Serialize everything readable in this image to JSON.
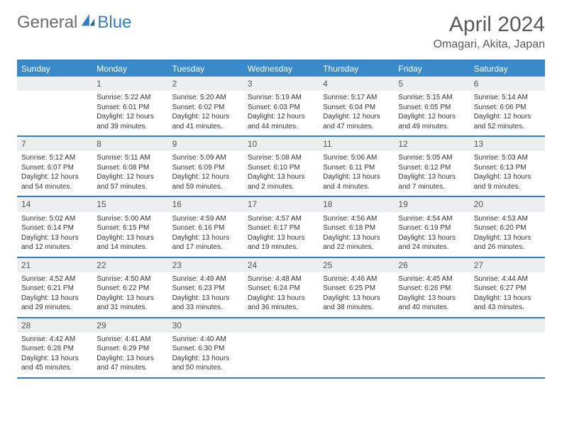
{
  "logo": {
    "text1": "General",
    "text2": "Blue"
  },
  "title": "April 2024",
  "location": "Omagari, Akita, Japan",
  "colors": {
    "header_bg": "#3a8ac9",
    "border": "#2f7fc2",
    "daybar_bg": "#eceef0",
    "text": "#333333",
    "title_text": "#5a5a5a"
  },
  "weekdays": [
    "Sunday",
    "Monday",
    "Tuesday",
    "Wednesday",
    "Thursday",
    "Friday",
    "Saturday"
  ],
  "weeks": [
    [
      {
        "n": "",
        "sr": "",
        "ss": "",
        "dl1": "",
        "dl2": ""
      },
      {
        "n": "1",
        "sr": "5:22 AM",
        "ss": "6:01 PM",
        "dl1": "12 hours",
        "dl2": "and 39 minutes."
      },
      {
        "n": "2",
        "sr": "5:20 AM",
        "ss": "6:02 PM",
        "dl1": "12 hours",
        "dl2": "and 41 minutes."
      },
      {
        "n": "3",
        "sr": "5:19 AM",
        "ss": "6:03 PM",
        "dl1": "12 hours",
        "dl2": "and 44 minutes."
      },
      {
        "n": "4",
        "sr": "5:17 AM",
        "ss": "6:04 PM",
        "dl1": "12 hours",
        "dl2": "and 47 minutes."
      },
      {
        "n": "5",
        "sr": "5:15 AM",
        "ss": "6:05 PM",
        "dl1": "12 hours",
        "dl2": "and 49 minutes."
      },
      {
        "n": "6",
        "sr": "5:14 AM",
        "ss": "6:06 PM",
        "dl1": "12 hours",
        "dl2": "and 52 minutes."
      }
    ],
    [
      {
        "n": "7",
        "sr": "5:12 AM",
        "ss": "6:07 PM",
        "dl1": "12 hours",
        "dl2": "and 54 minutes."
      },
      {
        "n": "8",
        "sr": "5:11 AM",
        "ss": "6:08 PM",
        "dl1": "12 hours",
        "dl2": "and 57 minutes."
      },
      {
        "n": "9",
        "sr": "5:09 AM",
        "ss": "6:09 PM",
        "dl1": "12 hours",
        "dl2": "and 59 minutes."
      },
      {
        "n": "10",
        "sr": "5:08 AM",
        "ss": "6:10 PM",
        "dl1": "13 hours",
        "dl2": "and 2 minutes."
      },
      {
        "n": "11",
        "sr": "5:06 AM",
        "ss": "6:11 PM",
        "dl1": "13 hours",
        "dl2": "and 4 minutes."
      },
      {
        "n": "12",
        "sr": "5:05 AM",
        "ss": "6:12 PM",
        "dl1": "13 hours",
        "dl2": "and 7 minutes."
      },
      {
        "n": "13",
        "sr": "5:03 AM",
        "ss": "6:13 PM",
        "dl1": "13 hours",
        "dl2": "and 9 minutes."
      }
    ],
    [
      {
        "n": "14",
        "sr": "5:02 AM",
        "ss": "6:14 PM",
        "dl1": "13 hours",
        "dl2": "and 12 minutes."
      },
      {
        "n": "15",
        "sr": "5:00 AM",
        "ss": "6:15 PM",
        "dl1": "13 hours",
        "dl2": "and 14 minutes."
      },
      {
        "n": "16",
        "sr": "4:59 AM",
        "ss": "6:16 PM",
        "dl1": "13 hours",
        "dl2": "and 17 minutes."
      },
      {
        "n": "17",
        "sr": "4:57 AM",
        "ss": "6:17 PM",
        "dl1": "13 hours",
        "dl2": "and 19 minutes."
      },
      {
        "n": "18",
        "sr": "4:56 AM",
        "ss": "6:18 PM",
        "dl1": "13 hours",
        "dl2": "and 22 minutes."
      },
      {
        "n": "19",
        "sr": "4:54 AM",
        "ss": "6:19 PM",
        "dl1": "13 hours",
        "dl2": "and 24 minutes."
      },
      {
        "n": "20",
        "sr": "4:53 AM",
        "ss": "6:20 PM",
        "dl1": "13 hours",
        "dl2": "and 26 minutes."
      }
    ],
    [
      {
        "n": "21",
        "sr": "4:52 AM",
        "ss": "6:21 PM",
        "dl1": "13 hours",
        "dl2": "and 29 minutes."
      },
      {
        "n": "22",
        "sr": "4:50 AM",
        "ss": "6:22 PM",
        "dl1": "13 hours",
        "dl2": "and 31 minutes."
      },
      {
        "n": "23",
        "sr": "4:49 AM",
        "ss": "6:23 PM",
        "dl1": "13 hours",
        "dl2": "and 33 minutes."
      },
      {
        "n": "24",
        "sr": "4:48 AM",
        "ss": "6:24 PM",
        "dl1": "13 hours",
        "dl2": "and 36 minutes."
      },
      {
        "n": "25",
        "sr": "4:46 AM",
        "ss": "6:25 PM",
        "dl1": "13 hours",
        "dl2": "and 38 minutes."
      },
      {
        "n": "26",
        "sr": "4:45 AM",
        "ss": "6:26 PM",
        "dl1": "13 hours",
        "dl2": "and 40 minutes."
      },
      {
        "n": "27",
        "sr": "4:44 AM",
        "ss": "6:27 PM",
        "dl1": "13 hours",
        "dl2": "and 43 minutes."
      }
    ],
    [
      {
        "n": "28",
        "sr": "4:42 AM",
        "ss": "6:28 PM",
        "dl1": "13 hours",
        "dl2": "and 45 minutes."
      },
      {
        "n": "29",
        "sr": "4:41 AM",
        "ss": "6:29 PM",
        "dl1": "13 hours",
        "dl2": "and 47 minutes."
      },
      {
        "n": "30",
        "sr": "4:40 AM",
        "ss": "6:30 PM",
        "dl1": "13 hours",
        "dl2": "and 50 minutes."
      },
      {
        "n": "",
        "sr": "",
        "ss": "",
        "dl1": "",
        "dl2": ""
      },
      {
        "n": "",
        "sr": "",
        "ss": "",
        "dl1": "",
        "dl2": ""
      },
      {
        "n": "",
        "sr": "",
        "ss": "",
        "dl1": "",
        "dl2": ""
      },
      {
        "n": "",
        "sr": "",
        "ss": "",
        "dl1": "",
        "dl2": ""
      }
    ]
  ],
  "labels": {
    "sunrise": "Sunrise: ",
    "sunset": "Sunset: ",
    "daylight": "Daylight: "
  }
}
